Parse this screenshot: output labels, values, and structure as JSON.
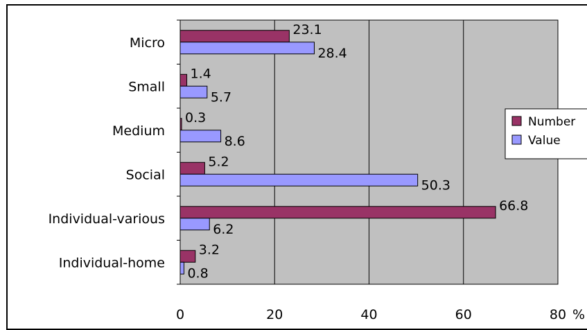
{
  "chart_data": {
    "type": "bar",
    "orientation": "horizontal",
    "categories": [
      "Micro",
      "Small",
      "Medium",
      "Social",
      "Individual-various",
      "Individual-home"
    ],
    "series": [
      {
        "name": "Number",
        "values": [
          23.1,
          1.4,
          0.3,
          5.2,
          66.8,
          3.2
        ],
        "color": "#993366"
      },
      {
        "name": "Value",
        "values": [
          28.4,
          5.7,
          8.6,
          50.3,
          6.2,
          0.8
        ],
        "color": "#9999ff"
      }
    ],
    "xlim": [
      0,
      80
    ],
    "xticks": [
      0,
      20,
      40,
      60,
      80
    ],
    "x_unit": "%",
    "grid": true,
    "plot_background": "#c0c0c0",
    "legend_position": "right"
  }
}
